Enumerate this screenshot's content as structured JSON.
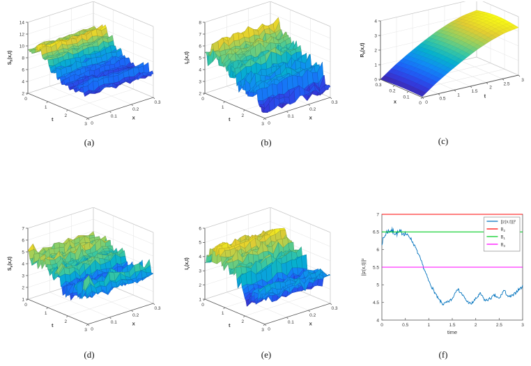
{
  "figure": {
    "background": "#ffffff"
  },
  "chart_data": [
    {
      "id": "a",
      "caption": "(a)",
      "type": "surface",
      "colormap": "parula",
      "z_axis": {
        "label": "S_h(x,t)",
        "min": 2,
        "max": 14,
        "ticks": [
          2,
          4,
          6,
          8,
          10,
          12,
          14
        ]
      },
      "left_axis": {
        "label": "t",
        "start": 0,
        "end": 3,
        "ticks": [
          0,
          1,
          2,
          3
        ]
      },
      "right_axis": {
        "label": "x",
        "start": 0,
        "end": 0.3,
        "ticks": [
          0,
          0.1,
          0.2,
          0.3
        ]
      },
      "profile_axis": "left",
      "t_profile": [
        9.2,
        10.2,
        8.8,
        7.6,
        6.8,
        6.3,
        6.1,
        6.0
      ],
      "noise": 1.3,
      "seed": 11
    },
    {
      "id": "b",
      "caption": "(b)",
      "type": "surface",
      "colormap": "parula",
      "z_axis": {
        "label": "I_h(x,t)",
        "min": 2,
        "max": 8,
        "ticks": [
          2,
          3,
          4,
          5,
          6,
          7,
          8
        ]
      },
      "left_axis": {
        "label": "t",
        "start": 0,
        "end": 3,
        "ticks": [
          0,
          1,
          2,
          3
        ]
      },
      "right_axis": {
        "label": "x",
        "start": 0,
        "end": 0.3,
        "ticks": [
          0,
          0.1,
          0.2,
          0.3
        ]
      },
      "profile_axis": "left",
      "t_profile": [
        5.2,
        6.3,
        5.8,
        4.9,
        4.2,
        3.7,
        3.4,
        3.1
      ],
      "noise": 1.05,
      "seed": 23
    },
    {
      "id": "c",
      "caption": "(c)",
      "type": "surface",
      "colormap": "parula",
      "smooth": true,
      "z_axis": {
        "label": "R_h(x,t)",
        "min": 0,
        "max": 4,
        "ticks": [
          0,
          1,
          2,
          3,
          4
        ]
      },
      "left_axis": {
        "label": "x",
        "start": 0.3,
        "end": 0,
        "ticks": [
          0.3,
          0.2,
          0.1,
          0
        ]
      },
      "right_axis": {
        "label": "t",
        "start": 0,
        "end": 3,
        "ticks": [
          0,
          0.5,
          1,
          1.5,
          2,
          2.5,
          3
        ]
      },
      "profile_axis": "right",
      "t_profile": [
        0,
        0.7,
        1.3,
        1.85,
        2.35,
        2.75,
        3.05,
        3.2
      ],
      "noise": 0,
      "seed": 5
    },
    {
      "id": "d",
      "caption": "(d)",
      "type": "surface",
      "colormap": "parula",
      "z_axis": {
        "label": "S_v(x,t)",
        "min": 1,
        "max": 7,
        "ticks": [
          1,
          2,
          3,
          4,
          5,
          6,
          7
        ]
      },
      "left_axis": {
        "label": "t",
        "start": 0,
        "end": 3,
        "ticks": [
          0,
          1,
          2,
          3
        ]
      },
      "right_axis": {
        "label": "x",
        "start": 0,
        "end": 0.3,
        "ticks": [
          0,
          0.1,
          0.2,
          0.3
        ]
      },
      "profile_axis": "left",
      "t_profile": [
        4.4,
        5.0,
        4.6,
        4.0,
        3.3,
        2.9,
        3.3,
        3.9
      ],
      "noise": 1.05,
      "seed": 37
    },
    {
      "id": "e",
      "caption": "(e)",
      "type": "surface",
      "colormap": "parula",
      "z_axis": {
        "label": "I_v(x,t)",
        "min": 1,
        "max": 6,
        "ticks": [
          1,
          2,
          3,
          4,
          5,
          6
        ]
      },
      "left_axis": {
        "label": "t",
        "start": 0,
        "end": 3,
        "ticks": [
          0,
          1,
          2,
          3
        ]
      },
      "right_axis": {
        "label": "x",
        "start": 0,
        "end": 0.3,
        "ticks": [
          0,
          0.1,
          0.2,
          0.3
        ]
      },
      "profile_axis": "left",
      "t_profile": [
        3.6,
        4.4,
        4.6,
        3.9,
        3.2,
        2.7,
        2.4,
        2.9
      ],
      "noise": 0.95,
      "seed": 49
    },
    {
      "id": "f",
      "caption": "(f)",
      "type": "line",
      "x_axis": {
        "label": "time",
        "min": 0,
        "max": 3,
        "ticks": [
          0,
          0.5,
          1,
          1.5,
          2,
          2.5,
          3
        ]
      },
      "y_axis": {
        "label": "||z(x,t)||²",
        "min": 4,
        "max": 7,
        "ticks": [
          4,
          4.5,
          5,
          5.5,
          6,
          6.5,
          7
        ]
      },
      "series": [
        {
          "name": "||z(x,t)||²",
          "color": "#0072BD",
          "kind": "curve",
          "x": [
            0,
            0.1,
            0.2,
            0.3,
            0.4,
            0.5,
            0.6,
            0.7,
            0.8,
            0.9,
            1,
            1.1,
            1.2,
            1.3,
            1.4,
            1.5,
            1.6,
            1.7,
            1.8,
            1.9,
            2,
            2.1,
            2.2,
            2.3,
            2.4,
            2.5,
            2.6,
            2.7,
            2.8,
            2.9,
            3
          ],
          "y": [
            6.2,
            6.5,
            6.55,
            6.45,
            6.5,
            6.45,
            6.35,
            6.1,
            5.8,
            5.45,
            5.1,
            4.85,
            4.6,
            4.45,
            4.5,
            4.6,
            4.9,
            4.75,
            4.55,
            4.45,
            4.6,
            4.75,
            4.55,
            4.6,
            4.7,
            4.6,
            4.85,
            4.65,
            4.7,
            4.85,
            4.95
          ]
        },
        {
          "name": "B_2",
          "color": "#ff0000",
          "kind": "hline",
          "value": 7
        },
        {
          "name": "B_1",
          "color": "#00cc22",
          "kind": "hline",
          "value": 6.5
        },
        {
          "name": "B_3",
          "color": "#ff00ff",
          "kind": "hline",
          "value": 5.5
        }
      ],
      "legend_position": "top-right",
      "noise": 0.06,
      "seed": 7
    }
  ]
}
